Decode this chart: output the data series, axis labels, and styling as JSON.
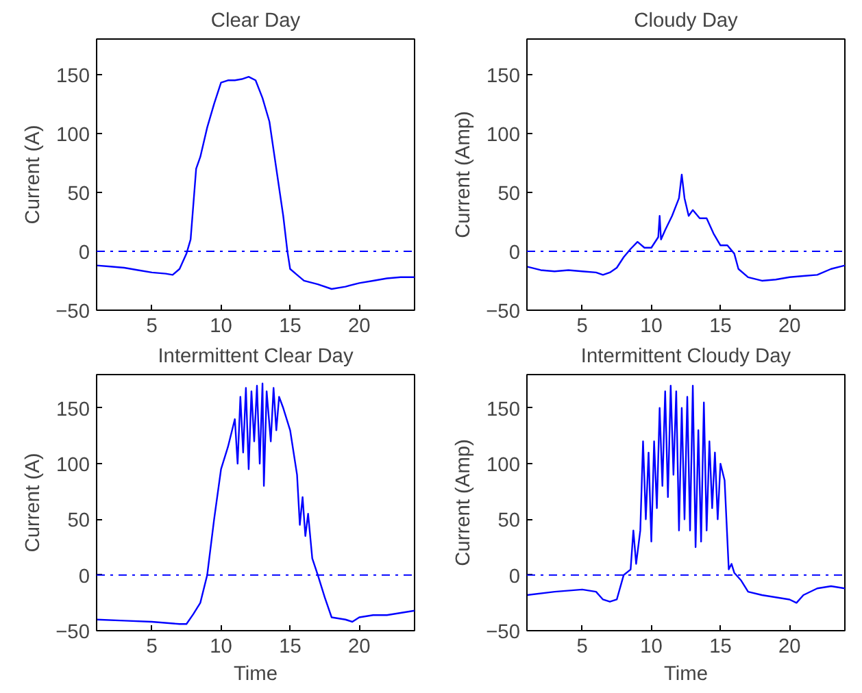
{
  "chart_data": [
    {
      "type": "line",
      "title": "Clear Day",
      "ylabel": "Current (A)",
      "xlim": [
        1,
        24
      ],
      "ylim": [
        -50,
        180
      ],
      "xticks": [
        5,
        10,
        15,
        20
      ],
      "yticks": [
        -50,
        0,
        50,
        100,
        150
      ],
      "grid": false,
      "line_style": "solid",
      "ref_lines": [
        {
          "axis": "y",
          "value": 0,
          "color": "#0000ff",
          "line_style": "dashdot"
        }
      ],
      "series": [
        {
          "color": "#0000ff",
          "x": [
            1,
            2,
            3,
            4,
            5,
            6,
            6.5,
            7,
            7.5,
            7.8,
            8,
            8.2,
            8.5,
            9,
            9.5,
            10,
            10.5,
            11,
            11.5,
            12,
            12.5,
            13,
            13.5,
            14,
            14.5,
            14.8,
            15,
            15.5,
            16,
            17,
            18,
            19,
            20,
            21,
            22,
            23,
            24
          ],
          "values": [
            -12,
            -13,
            -14,
            -16,
            -18,
            -19,
            -20,
            -15,
            -2,
            10,
            40,
            70,
            80,
            105,
            125,
            143,
            145,
            145,
            146,
            148,
            145,
            130,
            110,
            70,
            30,
            0,
            -15,
            -20,
            -25,
            -28,
            -32,
            -30,
            -27,
            -25,
            -23,
            -22,
            -22
          ]
        }
      ]
    },
    {
      "type": "line",
      "title": "Cloudy Day",
      "ylabel": "Current (Amp)",
      "xlim": [
        1,
        24
      ],
      "ylim": [
        -50,
        180
      ],
      "xticks": [
        5,
        10,
        15,
        20
      ],
      "yticks": [
        -50,
        0,
        50,
        100,
        150
      ],
      "grid": false,
      "line_style": "solid",
      "ref_lines": [
        {
          "axis": "y",
          "value": 0,
          "color": "#0000ff",
          "line_style": "dashdot"
        }
      ],
      "series": [
        {
          "color": "#0000ff",
          "x": [
            1,
            2,
            3,
            4,
            5,
            6,
            6.5,
            7,
            7.5,
            8,
            8.5,
            9,
            9.5,
            10,
            10.5,
            10.6,
            10.7,
            11,
            11.5,
            12,
            12.2,
            12.4,
            12.7,
            13,
            13.5,
            14,
            14.5,
            15,
            15.5,
            16,
            16.3,
            17,
            18,
            19,
            20,
            21,
            22,
            23,
            24
          ],
          "values": [
            -13,
            -16,
            -17,
            -16,
            -17,
            -18,
            -20,
            -18,
            -14,
            -5,
            2,
            8,
            3,
            3,
            12,
            30,
            10,
            18,
            30,
            45,
            65,
            45,
            30,
            35,
            28,
            28,
            15,
            5,
            5,
            -2,
            -15,
            -22,
            -25,
            -24,
            -22,
            -21,
            -20,
            -15,
            -12
          ]
        }
      ]
    },
    {
      "type": "line",
      "title": "Intermittent Clear Day",
      "ylabel": "Current (A)",
      "xlabel": "Time",
      "xlim": [
        1,
        24
      ],
      "ylim": [
        -50,
        180
      ],
      "xticks": [
        5,
        10,
        15,
        20
      ],
      "yticks": [
        -50,
        0,
        50,
        100,
        150
      ],
      "grid": false,
      "line_style": "solid",
      "ref_lines": [
        {
          "axis": "y",
          "value": 0,
          "color": "#0000ff",
          "line_style": "dashdot"
        }
      ],
      "series": [
        {
          "color": "#0000ff",
          "x": [
            1,
            3,
            5,
            7,
            7.5,
            8,
            8.5,
            9,
            9.5,
            10,
            10.5,
            11,
            11.2,
            11.4,
            11.6,
            11.8,
            12,
            12.2,
            12.4,
            12.6,
            12.8,
            13,
            13.1,
            13.3,
            13.6,
            13.8,
            14,
            14.2,
            14.5,
            15,
            15.5,
            15.7,
            15.9,
            16.1,
            16.3,
            16.6,
            17,
            17.5,
            18,
            19,
            19.5,
            20,
            21,
            22,
            23,
            24
          ],
          "values": [
            -40,
            -41,
            -42,
            -44,
            -44,
            -35,
            -25,
            0,
            50,
            95,
            115,
            140,
            100,
            160,
            110,
            168,
            95,
            165,
            120,
            170,
            100,
            172,
            80,
            165,
            120,
            168,
            130,
            160,
            150,
            130,
            90,
            45,
            70,
            35,
            55,
            15,
            0,
            -20,
            -38,
            -40,
            -42,
            -38,
            -36,
            -36,
            -34,
            -32
          ]
        }
      ]
    },
    {
      "type": "line",
      "title": "Intermittent Cloudy Day",
      "ylabel": "Current (Amp)",
      "xlabel": "Time",
      "xlim": [
        1,
        24
      ],
      "ylim": [
        -50,
        180
      ],
      "xticks": [
        5,
        10,
        15,
        20
      ],
      "yticks": [
        -50,
        0,
        50,
        100,
        150
      ],
      "grid": false,
      "line_style": "solid",
      "ref_lines": [
        {
          "axis": "y",
          "value": 0,
          "color": "#0000ff",
          "line_style": "dashdot"
        }
      ],
      "series": [
        {
          "color": "#0000ff",
          "x": [
            1,
            3,
            5,
            6,
            6.5,
            7,
            7.5,
            8,
            8.5,
            8.7,
            8.9,
            9.2,
            9.4,
            9.6,
            9.8,
            10,
            10.2,
            10.4,
            10.6,
            10.8,
            11,
            11.2,
            11.4,
            11.6,
            11.8,
            12,
            12.2,
            12.4,
            12.6,
            12.8,
            13,
            13.2,
            13.4,
            13.6,
            13.8,
            14,
            14.2,
            14.4,
            14.6,
            14.8,
            15,
            15.3,
            15.6,
            15.8,
            16,
            16.5,
            17,
            18,
            19,
            20,
            20.5,
            21,
            22,
            23,
            24
          ],
          "values": [
            -18,
            -15,
            -13,
            -15,
            -22,
            -24,
            -22,
            0,
            5,
            40,
            10,
            40,
            120,
            50,
            110,
            30,
            120,
            60,
            150,
            80,
            165,
            70,
            170,
            90,
            165,
            40,
            150,
            50,
            160,
            40,
            170,
            25,
            130,
            30,
            155,
            40,
            120,
            60,
            110,
            50,
            100,
            85,
            5,
            10,
            2,
            -5,
            -15,
            -18,
            -20,
            -22,
            -25,
            -18,
            -12,
            -10,
            -12
          ]
        }
      ]
    }
  ]
}
